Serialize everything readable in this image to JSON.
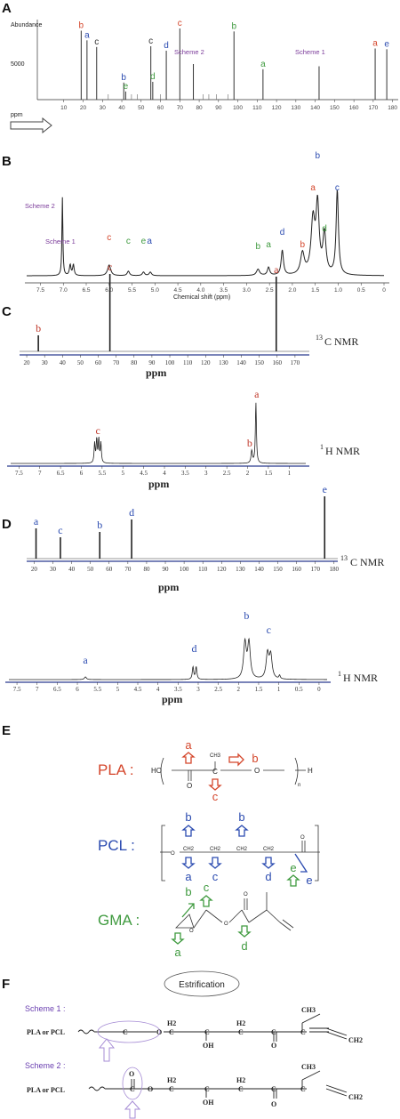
{
  "panels": {
    "A": {
      "label": "A",
      "ylabel": "Abundance",
      "ytick_5000": "5000",
      "xlabel": "ppm",
      "xticks": [
        "10",
        "20",
        "30",
        "40",
        "50",
        "60",
        "70",
        "80",
        "90",
        "100",
        "110",
        "120",
        "130",
        "140",
        "150",
        "160",
        "170",
        "180"
      ],
      "scheme1": "Scheme 1",
      "scheme2": "Scheme 2",
      "chart_data": {
        "type": "bar",
        "x": [
          19,
          22,
          27,
          41,
          42,
          55,
          56,
          63,
          70,
          77,
          98,
          113,
          142,
          171,
          177
        ],
        "values": [
          9300,
          8000,
          7100,
          2300,
          1100,
          7200,
          2400,
          6600,
          9600,
          4800,
          9200,
          4100,
          4500,
          6900,
          6800
        ],
        "peak_labels": [
          "b",
          "a",
          "c",
          "b",
          "e",
          "c",
          "d",
          "d",
          "c",
          "",
          "b",
          "a",
          "",
          "a",
          "e"
        ],
        "xlim": [
          0,
          182
        ]
      }
    },
    "B": {
      "label": "B",
      "xlabel": "Chemical shift (ppm)",
      "xticks": [
        "7.5",
        "7.0",
        "6.5",
        "6.0",
        "5.5",
        "5.0",
        "4.5",
        "4.0",
        "3.5",
        "3.0",
        "2.5",
        "2.0",
        "1.5",
        "1.0",
        "0.5",
        "0"
      ],
      "scheme1": "Scheme 1",
      "scheme2": "Scheme 2",
      "chart_data": {
        "type": "line",
        "peaks_ppm": [
          7.02,
          6.82,
          6.0,
          5.58,
          5.25,
          5.1,
          2.75,
          2.52,
          2.22,
          1.78,
          1.55,
          1.45,
          1.3,
          1.02
        ],
        "peak_labels": [
          "",
          "",
          "c",
          "c",
          "e",
          "a",
          "b",
          "a",
          "d",
          "b",
          "a",
          "b",
          "d",
          "c"
        ],
        "xlim": [
          7.8,
          0
        ]
      }
    },
    "C": {
      "label": "C",
      "c13_xticks": [
        "20",
        "30",
        "40",
        "50",
        "60",
        "70",
        "80",
        "90",
        "100",
        "110",
        "120",
        "130",
        "140",
        "150",
        "160",
        "170"
      ],
      "h1_xticks": [
        "7.5",
        "7",
        "6.5",
        "6",
        "5.5",
        "5",
        "4.5",
        "4",
        "3.5",
        "3",
        "2.5",
        "2",
        "1.5",
        "1"
      ],
      "xlabel": "ppm",
      "c13_label": "C NMR",
      "c13_sup": "13",
      "h1_label": "H NMR",
      "h1_sup": "1",
      "chart_data": {
        "c13": {
          "type": "line",
          "x": [
            26.5,
            66.5,
            159.5
          ],
          "labels": [
            "b",
            "c",
            "a"
          ],
          "xlim": [
            16,
            178
          ]
        },
        "h1": {
          "type": "line",
          "x": [
            5.6,
            1.85,
            1.75
          ],
          "labels": [
            "c",
            "b",
            "a"
          ],
          "xlim": [
            7.7,
            0.6
          ]
        }
      }
    },
    "D": {
      "label": "D",
      "c13_xticks": [
        "20",
        "30",
        "40",
        "50",
        "60",
        "70",
        "80",
        "90",
        "100",
        "110",
        "120",
        "130",
        "140",
        "150",
        "160",
        "170",
        "180"
      ],
      "h1_xticks": [
        "7.5",
        "7",
        "6.5",
        "6",
        "5.5",
        "5",
        "4.5",
        "4",
        "3.5",
        "3",
        "2.5",
        "2",
        "1.5",
        "1",
        "0.5",
        "0"
      ],
      "xlabel": "ppm",
      "c13_label": "C NMR",
      "c13_sup": "13",
      "h1_label": "H NMR",
      "h1_sup": "1",
      "chart_data": {
        "c13": {
          "type": "line",
          "x": [
            21,
            34,
            55,
            72,
            175
          ],
          "labels": [
            "a",
            "c",
            "b",
            "d",
            "e"
          ],
          "xlim": [
            16,
            182
          ]
        },
        "h1": {
          "type": "line",
          "x": [
            5.8,
            3.1,
            1.8,
            1.25
          ],
          "labels": [
            "a",
            "d",
            "b",
            "c"
          ],
          "xlim": [
            7.7,
            -0.2
          ]
        }
      }
    },
    "E": {
      "label": "E",
      "pla": "PLA :",
      "pcl": "PCL :",
      "gma": "GMA :",
      "n": "n",
      "ho": "HO",
      "h": "H",
      "o": "O",
      "ch3": "CH3",
      "ch2": "CH2",
      "c": "C",
      "letters": {
        "a": "a",
        "b": "b",
        "c": "c",
        "d": "d",
        "e": "e"
      },
      "colors": {
        "pla": "#d4462b",
        "pcl": "#2b4bb0",
        "gma": "#3f9a3f"
      }
    },
    "F": {
      "label": "F",
      "scheme1": "Scheme 1 :",
      "scheme2": "Scheme 2 :",
      "esterification": "Estrification",
      "chain_label": "PLA or PCL",
      "h2": "H2",
      "c": "C",
      "oh": "OH",
      "o": "O",
      "ch3": "CH3",
      "ch2": "CH2"
    }
  }
}
